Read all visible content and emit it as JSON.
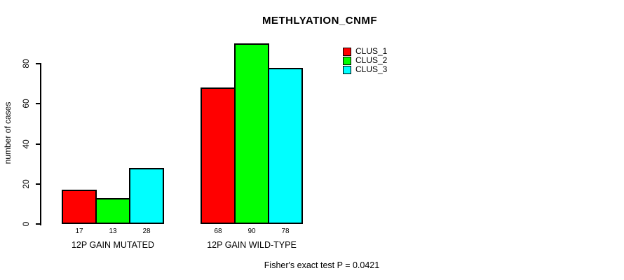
{
  "title": "METHLYATION_CNMF",
  "footer": "Fisher's exact test P = 0.0421",
  "y_axis": {
    "label": "number of cases",
    "ticks": [
      0,
      20,
      40,
      60,
      80
    ]
  },
  "legend": {
    "position": "top-right",
    "entries": [
      {
        "label": "CLUS_1",
        "color": "#ff0000"
      },
      {
        "label": "CLUS_2",
        "color": "#00ff00"
      },
      {
        "label": "CLUS_3",
        "color": "#00ffff"
      }
    ]
  },
  "chart_data": {
    "type": "bar",
    "grouped": true,
    "title": "METHLYATION_CNMF",
    "xlabel": "",
    "ylabel": "number of cases",
    "categories": [
      "12P GAIN MUTATED",
      "12P GAIN WILD-TYPE"
    ],
    "series": [
      {
        "name": "CLUS_1",
        "color": "#ff0000",
        "values": [
          17,
          68
        ]
      },
      {
        "name": "CLUS_2",
        "color": "#00ff00",
        "values": [
          13,
          90
        ]
      },
      {
        "name": "CLUS_3",
        "color": "#00ffff",
        "values": [
          28,
          78
        ]
      }
    ],
    "bar_value_labels": [
      [
        17,
        13,
        28
      ],
      [
        68,
        90,
        78
      ]
    ],
    "yticks": [
      0,
      20,
      40,
      60,
      80
    ],
    "ylim": [
      0,
      90
    ],
    "grid": false,
    "legend_position": "top-right",
    "annotation": "Fisher's exact test P = 0.0421"
  }
}
